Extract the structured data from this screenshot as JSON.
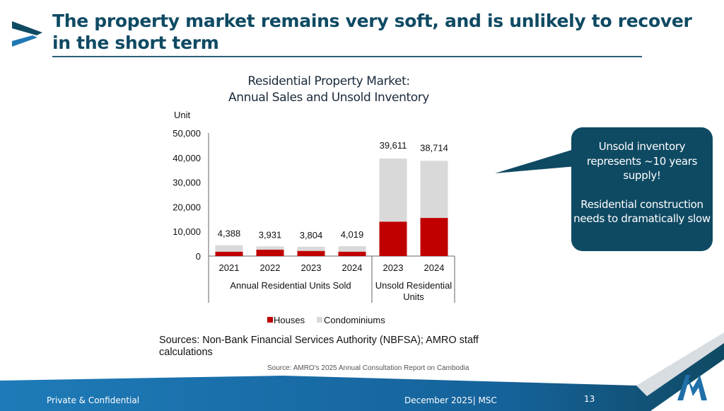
{
  "header": {
    "title": "The property market remains very soft, and is unlikely to recover in the short term"
  },
  "callout": {
    "line1": "Unsold inventory represents ~10 years supply!",
    "line2": "Residential construction needs to dramatically slow"
  },
  "sources": {
    "chart_source": "Sources:  Non-Bank Financial Services Authority (NBFSA); AMRO staff calculations",
    "report_source": "Source: AMRO's 2025 Annual Consultation Report on Cambodia"
  },
  "footer": {
    "left": "Private & Confidential",
    "date": "December 2025| MSC",
    "page": "13"
  },
  "colors": {
    "brand": "#0f4a63",
    "houses": "#c00000",
    "condos": "#d9d9d9"
  },
  "chart_data": {
    "type": "bar",
    "stacked": true,
    "title": "Residential Property Market:\nAnnual Sales and Unsold Inventory",
    "title_lines": [
      "Residential Property Market:",
      "Annual Sales and Unsold Inventory"
    ],
    "ylabel": "Unit",
    "ylim": [
      0,
      50000
    ],
    "yticks": [
      "0",
      "10,000",
      "20,000",
      "30,000",
      "40,000",
      "50,000"
    ],
    "categories": [
      "2021",
      "2022",
      "2023",
      "2024",
      "2023",
      "2024"
    ],
    "groups": [
      {
        "label": "Annual Residential Units Sold",
        "count": 4
      },
      {
        "label": "Unsold Residential Units",
        "count": 2
      }
    ],
    "series": [
      {
        "name": "Houses",
        "values": [
          1800,
          2600,
          2100,
          1800,
          14000,
          15500
        ]
      },
      {
        "name": "Condominiums",
        "values": [
          2588,
          1331,
          1704,
          2219,
          25611,
          23214
        ]
      }
    ],
    "totals": [
      "4,388",
      "3,931",
      "3,804",
      "4,019",
      "39,611",
      "38,714"
    ],
    "legend": "bottom"
  }
}
